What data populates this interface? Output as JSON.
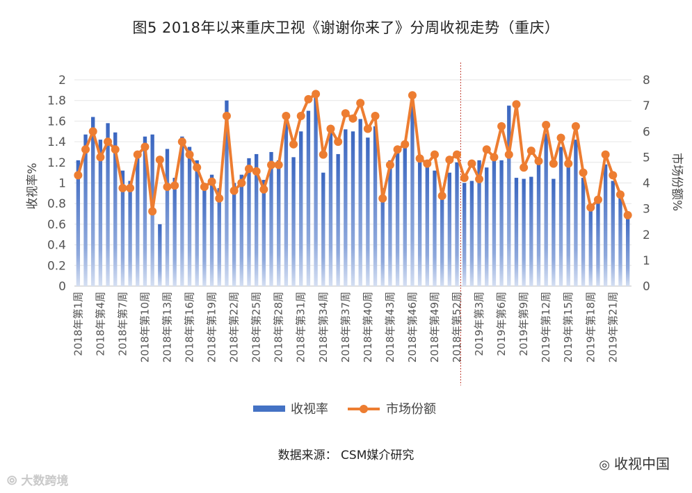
{
  "title": "图5  2018年以来重庆卫视《谢谢你来了》分周收视走势（重庆）",
  "source": "数据来源：  CSM媒介研究",
  "watermark_left": "大数跨境",
  "watermark_right": "收视中国",
  "chart_data": {
    "type": "bar",
    "ylabel": "收视率%",
    "y2label": "市场份额%",
    "ylim": [
      0,
      2
    ],
    "y2lim": [
      0,
      8
    ],
    "yticks": [
      "0",
      "0.2",
      "0.4",
      "0.6",
      "0.8",
      "1",
      "1.2",
      "1.4",
      "1.6",
      "1.8",
      "2"
    ],
    "y2ticks": [
      "0",
      "1",
      "2",
      "3",
      "4",
      "5",
      "6",
      "7",
      "8"
    ],
    "categories": [
      "2018年第1周",
      "2018年第2周",
      "2018年第3周",
      "2018年第4周",
      "2018年第5周",
      "2018年第6周",
      "2018年第7周",
      "2018年第8周",
      "2018年第9周",
      "2018年第10周",
      "2018年第11周",
      "2018年第12周",
      "2018年第13周",
      "2018年第14周",
      "2018年第15周",
      "2018年第16周",
      "2018年第17周",
      "2018年第18周",
      "2018年第19周",
      "2018年第20周",
      "2018年第21周",
      "2018年第22周",
      "2018年第23周",
      "2018年第24周",
      "2018年第25周",
      "2018年第26周",
      "2018年第27周",
      "2018年第28周",
      "2018年第29周",
      "2018年第30周",
      "2018年第31周",
      "2018年第32周",
      "2018年第33周",
      "2018年第34周",
      "2018年第35周",
      "2018年第36周",
      "2018年第37周",
      "2018年第38周",
      "2018年第39周",
      "2018年第40周",
      "2018年第41周",
      "2018年第42周",
      "2018年第43周",
      "2018年第44周",
      "2018年第45周",
      "2018年第46周",
      "2018年第47周",
      "2018年第48周",
      "2018年第49周",
      "2018年第50周",
      "2018年第51周",
      "2018年第52周",
      "2019年第1周",
      "2019年第2周",
      "2019年第3周",
      "2019年第4周",
      "2019年第5周",
      "2019年第6周",
      "2019年第7周",
      "2019年第8周",
      "2019年第9周",
      "2019年第10周",
      "2019年第11周",
      "2019年第12周",
      "2019年第13周",
      "2019年第14周",
      "2019年第15周",
      "2019年第16周",
      "2019年第17周",
      "2019年第18周",
      "2019年第19周",
      "2019年第20周",
      "2019年第21周",
      "2019年第22周",
      "2019年第23周"
    ],
    "tick_label_indices": [
      0,
      3,
      6,
      9,
      12,
      15,
      18,
      21,
      24,
      27,
      30,
      33,
      36,
      39,
      42,
      45,
      48,
      51,
      54,
      57,
      60,
      63,
      66,
      69,
      72
    ],
    "divider_after_index": 51,
    "legend_position": "bottom",
    "series": [
      {
        "name": "收视率",
        "kind": "bar",
        "axis": "left",
        "color": "#4472c4",
        "values": [
          1.22,
          1.47,
          1.64,
          1.42,
          1.58,
          1.49,
          1.12,
          1.02,
          1.25,
          1.45,
          1.47,
          0.6,
          1.33,
          1.05,
          1.45,
          1.35,
          1.22,
          0.98,
          1.08,
          0.95,
          1.8,
          1.0,
          1.08,
          1.24,
          1.28,
          1.03,
          1.3,
          1.22,
          1.62,
          1.25,
          1.5,
          1.7,
          1.84,
          1.1,
          1.52,
          1.28,
          1.52,
          1.5,
          1.62,
          1.44,
          1.55,
          0.95,
          1.22,
          1.32,
          1.35,
          1.8,
          1.22,
          1.2,
          1.12,
          0.95,
          1.1,
          1.2,
          1.0,
          1.02,
          1.22,
          1.15,
          1.28,
          1.22,
          1.75,
          1.05,
          1.04,
          1.06,
          1.2,
          1.48,
          1.04,
          1.35,
          1.2,
          1.42,
          1.05,
          0.78,
          0.82,
          1.18,
          1.02,
          0.9,
          0.7
        ]
      },
      {
        "name": "市场份额",
        "kind": "line",
        "axis": "right",
        "color": "#ed7d31",
        "values": [
          4.3,
          5.3,
          6.0,
          5.0,
          5.6,
          5.3,
          3.8,
          3.8,
          5.1,
          5.4,
          2.9,
          4.9,
          3.85,
          3.9,
          5.6,
          5.1,
          4.6,
          3.85,
          4.05,
          3.4,
          6.6,
          3.7,
          4.0,
          4.55,
          4.45,
          3.75,
          4.7,
          4.7,
          6.6,
          5.5,
          6.6,
          7.25,
          7.45,
          5.1,
          6.1,
          5.6,
          6.7,
          6.5,
          7.1,
          6.1,
          6.6,
          3.4,
          4.7,
          5.3,
          5.5,
          7.4,
          4.95,
          4.75,
          5.1,
          3.5,
          4.9,
          5.1,
          4.2,
          4.75,
          4.15,
          5.3,
          5.0,
          6.2,
          5.1,
          7.05,
          4.6,
          5.25,
          4.85,
          6.25,
          4.75,
          5.75,
          4.75,
          6.2,
          4.4,
          3.05,
          3.35,
          5.1,
          4.3,
          3.55,
          2.75
        ]
      }
    ]
  }
}
